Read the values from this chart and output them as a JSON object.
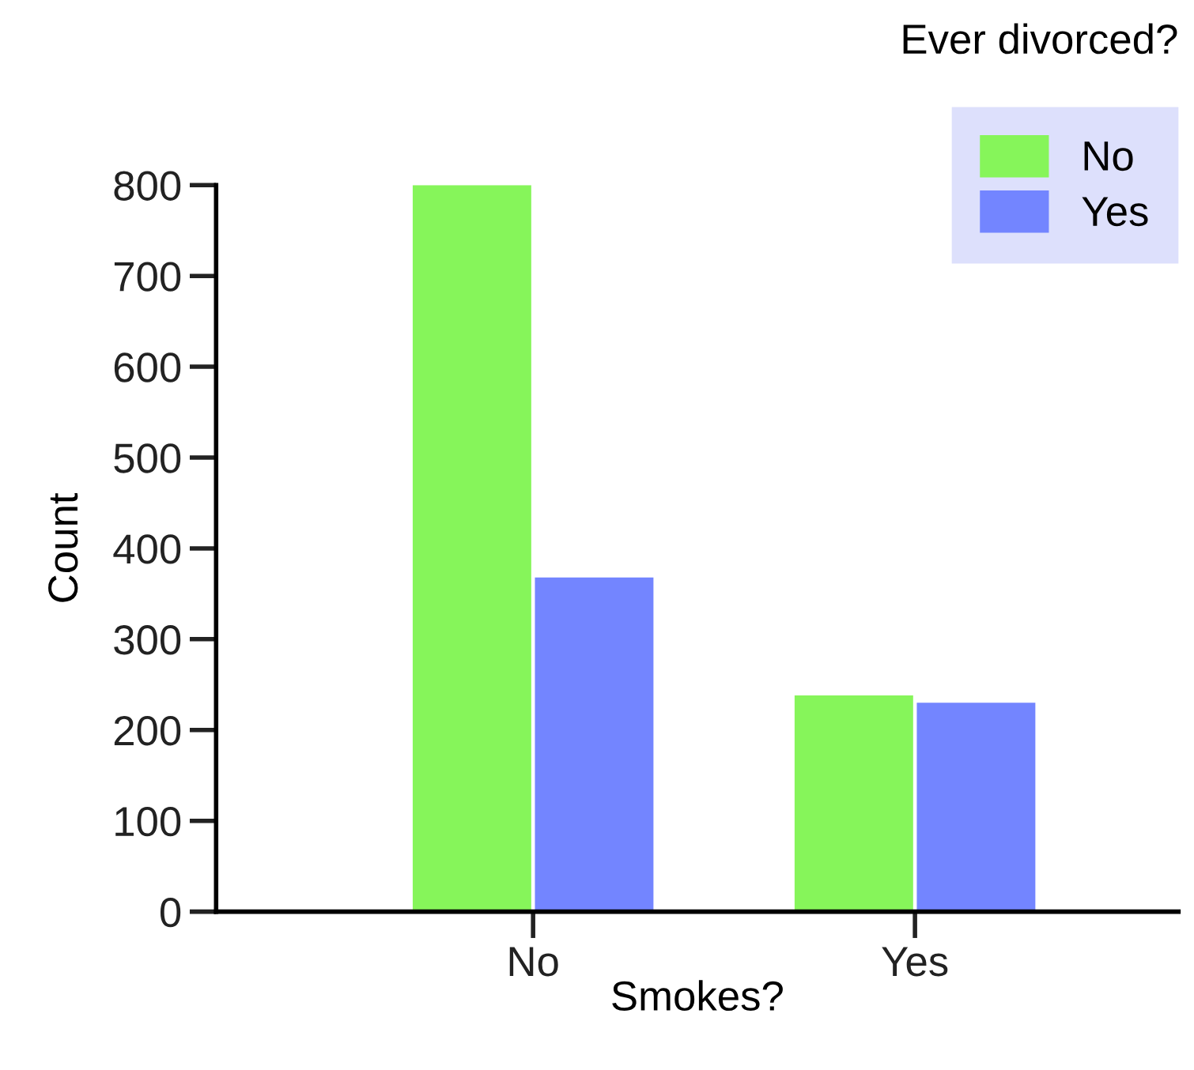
{
  "chart_data": {
    "type": "bar",
    "xlabel": "Smokes?",
    "ylabel": "Count",
    "legend_title": "Ever divorced?",
    "categories": [
      "No",
      "Yes"
    ],
    "series": [
      {
        "name": "No",
        "color": "#86f55a",
        "values": [
          800,
          238
        ]
      },
      {
        "name": "Yes",
        "color": "#7385ff",
        "values": [
          368,
          230
        ]
      }
    ],
    "ylim": [
      0,
      800
    ],
    "yticks": [
      0,
      100,
      200,
      300,
      400,
      500,
      600,
      700,
      800
    ],
    "grid": false,
    "legend": "top right"
  }
}
